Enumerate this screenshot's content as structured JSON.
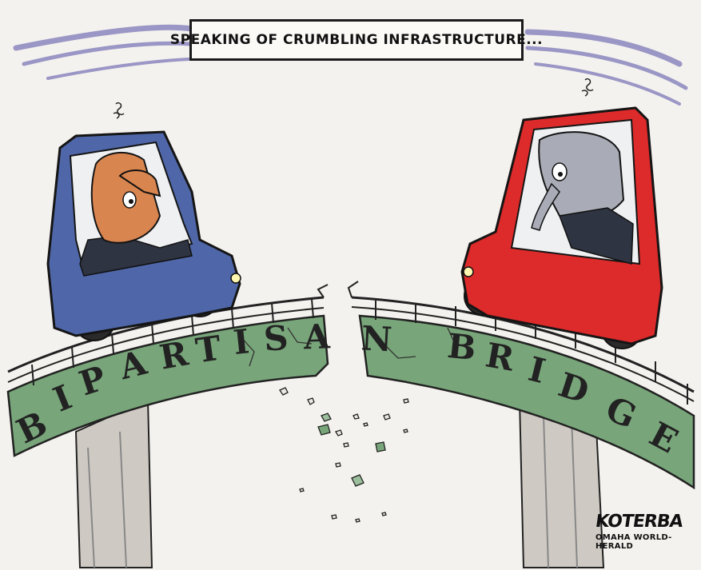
{
  "caption": "SPEAKING OF CRUMBLING INFRASTRUCTURE...",
  "bridge_left": [
    "B",
    "I",
    "P",
    "A",
    "R",
    "T",
    "I",
    "S",
    "A",
    "N"
  ],
  "bridge_right": [
    "B",
    "R",
    "I",
    "D",
    "G",
    "E"
  ],
  "signature": {
    "name": "KOTERBA",
    "paper": "OMAHA WORLD-HERALD"
  },
  "colors": {
    "left_car": "#4f67a8",
    "right_car": "#dd2a2a",
    "bridge": "#78a57a",
    "sky_streaks": "#7d78b8"
  }
}
